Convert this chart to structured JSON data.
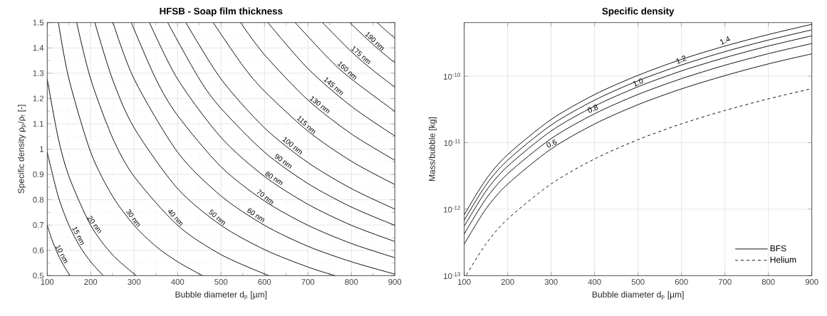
{
  "chart_data": [
    {
      "type": "line",
      "title": "HFSB - Soap film thickness",
      "xlabel": "Bubble diameter d$_{p}$ [µm]",
      "ylabel": "Specific density ρ$_{p}$/ρ$_{f}$ [-]",
      "xlim": [
        100,
        900
      ],
      "ylim": [
        0.5,
        1.5
      ],
      "xticks": [
        100,
        200,
        300,
        400,
        500,
        600,
        700,
        800,
        900
      ],
      "yticks": [
        0.5,
        0.6,
        0.7,
        0.8,
        0.9,
        1,
        1.1,
        1.2,
        1.3,
        1.4,
        1.5
      ],
      "grid": true,
      "series": [
        {
          "name": "10 nm",
          "color": "#000000",
          "x": [
            100,
            110,
            125,
            140,
            152.5
          ],
          "values": [
            0.7,
            0.646,
            0.583,
            0.534,
            0.5
          ]
        },
        {
          "name": "15 nm",
          "color": "#000000",
          "x": [
            100,
            125,
            150,
            175,
            200,
            228.8
          ],
          "values": [
            0.988,
            0.815,
            0.699,
            0.616,
            0.555,
            0.5
          ]
        },
        {
          "name": "20 nm",
          "color": "#000000",
          "x": [
            100,
            125,
            150,
            200,
            250,
            305
          ],
          "values": [
            1.277,
            1.046,
            0.892,
            0.699,
            0.583,
            0.5
          ]
        },
        {
          "name": "30 nm",
          "color": "#000000",
          "x": [
            125.7,
            150,
            200,
            250,
            300,
            350,
            400,
            457.5
          ],
          "values": [
            1.5,
            1.277,
            0.988,
            0.815,
            0.699,
            0.616,
            0.555,
            0.5
          ]
        },
        {
          "name": "40 nm",
          "color": "#000000",
          "x": [
            167.7,
            200,
            250,
            300,
            400,
            500,
            610
          ],
          "values": [
            1.5,
            1.277,
            1.046,
            0.892,
            0.699,
            0.583,
            0.5
          ]
        },
        {
          "name": "50 nm",
          "color": "#000000",
          "x": [
            209.6,
            250,
            300,
            400,
            500,
            600,
            700,
            762.5
          ],
          "values": [
            1.5,
            1.277,
            1.084,
            0.844,
            0.699,
            0.603,
            0.534,
            0.5
          ]
        },
        {
          "name": "60 nm",
          "color": "#000000",
          "x": [
            251.5,
            300,
            400,
            500,
            600,
            700,
            800,
            900
          ],
          "values": [
            1.5,
            1.277,
            0.988,
            0.815,
            0.699,
            0.616,
            0.555,
            0.506
          ]
        },
        {
          "name": "70 nm",
          "color": "#000000",
          "x": [
            293.4,
            350,
            400,
            500,
            600,
            700,
            800,
            900
          ],
          "values": [
            1.5,
            1.277,
            1.133,
            0.93,
            0.795,
            0.699,
            0.627,
            0.571
          ]
        },
        {
          "name": "80 nm",
          "color": "#000000",
          "x": [
            335.3,
            400,
            500,
            600,
            700,
            800,
            900
          ],
          "values": [
            1.5,
            1.277,
            1.046,
            0.892,
            0.782,
            0.699,
            0.635
          ]
        },
        {
          "name": "90 nm",
          "color": "#000000",
          "x": [
            377.2,
            450,
            500,
            600,
            700,
            800,
            900
          ],
          "values": [
            1.5,
            1.277,
            1.161,
            0.988,
            0.864,
            0.771,
            0.699
          ]
        },
        {
          "name": "100 nm",
          "color": "#000000",
          "x": [
            419.1,
            500,
            600,
            700,
            800,
            900
          ],
          "values": [
            1.5,
            1.277,
            1.084,
            0.947,
            0.844,
            0.763
          ]
        },
        {
          "name": "115 nm",
          "color": "#000000",
          "x": [
            482,
            550,
            600,
            700,
            800,
            900
          ],
          "values": [
            1.5,
            1.33,
            1.229,
            1.071,
            0.952,
            0.86
          ]
        },
        {
          "name": "130 nm",
          "color": "#000000",
          "x": [
            544.9,
            600,
            700,
            800,
            900
          ],
          "values": [
            1.5,
            1.373,
            1.194,
            1.06,
            0.956
          ]
        },
        {
          "name": "145 nm",
          "color": "#000000",
          "x": [
            607.8,
            700,
            800,
            900
          ],
          "values": [
            1.5,
            1.318,
            1.169,
            1.052
          ]
        },
        {
          "name": "160 nm",
          "color": "#000000",
          "x": [
            670.6,
            750,
            800,
            900
          ],
          "values": [
            1.5,
            1.354,
            1.277,
            1.149
          ]
        },
        {
          "name": "175 nm",
          "color": "#000000",
          "x": [
            733.5,
            800,
            850,
            900
          ],
          "values": [
            1.5,
            1.385,
            1.311,
            1.245
          ]
        },
        {
          "name": "190 nm",
          "color": "#000000",
          "x": [
            796.4,
            850,
            900
          ],
          "values": [
            1.5,
            1.413,
            1.341
          ]
        },
        {
          "color": "#000000",
          "x": [
            859.2,
            880,
            900
          ],
          "values": [
            1.5,
            1.468,
            1.438
          ]
        }
      ]
    },
    {
      "type": "line",
      "title": "Specific density",
      "xlabel": "Bubble diameter d$_{p}$ [µm]",
      "ylabel": "Mass/bubble [kg]",
      "log": "y",
      "xlim": [
        100,
        900
      ],
      "ylim": [
        1e-13,
        6.4e-10
      ],
      "xticks": [
        100,
        200,
        300,
        400,
        500,
        600,
        700,
        800,
        900
      ],
      "yticks": [
        {
          "value": 1e-13,
          "label": "10$^{-13}$"
        },
        {
          "value": 1e-12,
          "label": "10$^{-12}$"
        },
        {
          "value": 1e-11,
          "label": "10$^{-11}$"
        },
        {
          "value": 1e-10,
          "label": "10$^{-10}$"
        }
      ],
      "grid": true,
      "legend": "bottom right",
      "x": [
        100,
        150,
        200,
        300,
        400,
        500,
        600,
        700,
        800,
        900
      ],
      "series": [
        {
          "name": "BFS",
          "color": "#000000",
          "line_style": "solid",
          "values": [
            2.98e-13,
            1.01e-12,
            2.38e-12,
            8.05e-12,
            1.91e-11,
            3.73e-11,
            6.44e-11,
            1.02e-10,
            1.53e-10,
            2.17e-10
          ]
        },
        {
          "color": "#000000",
          "line_style": "solid",
          "values": [
            4.25e-13,
            1.43e-12,
            3.4e-12,
            1.15e-11,
            2.72e-11,
            5.31e-11,
            9.18e-11,
            1.46e-10,
            2.18e-10,
            3.1e-10
          ]
        },
        {
          "color": "#000000",
          "line_style": "solid",
          "values": [
            5.54e-13,
            1.87e-12,
            4.43e-12,
            1.5e-11,
            3.55e-11,
            6.93e-11,
            1.2e-10,
            1.9e-10,
            2.84e-10,
            4.04e-10
          ]
        },
        {
          "color": "#000000",
          "line_style": "solid",
          "values": [
            6.82e-13,
            2.3e-12,
            5.46e-12,
            1.84e-11,
            4.36e-11,
            8.53e-11,
            1.47e-10,
            2.34e-10,
            3.49e-10,
            4.97e-10
          ]
        },
        {
          "color": "#000000",
          "line_style": "solid",
          "values": [
            8.27e-13,
            2.79e-12,
            6.62e-12,
            2.23e-11,
            5.29e-11,
            1.03e-10,
            1.79e-10,
            2.84e-10,
            4.23e-10,
            6.03e-10
          ]
        },
        {
          "name": "Helium",
          "color": "#000000",
          "line_style": "dashed",
          "x": [
            105,
            150,
            200,
            300,
            400,
            500,
            600,
            700,
            800,
            900
          ],
          "values": [
            1.03e-13,
            3e-13,
            7.12e-13,
            2.4e-12,
            5.7e-12,
            1.11e-11,
            1.92e-11,
            3.05e-11,
            4.56e-11,
            6.49e-11
          ]
        }
      ],
      "annotations": [
        {
          "text": "0.6",
          "x": 305,
          "y": 8.5e-12
        },
        {
          "text": "0.8",
          "x": 400,
          "y": 2.83e-11
        },
        {
          "text": "1.0",
          "x": 504,
          "y": 7.06e-11
        },
        {
          "text": "1.2",
          "x": 603,
          "y": 1.55e-10
        },
        {
          "text": "1.4",
          "x": 704,
          "y": 3.02e-10
        }
      ]
    }
  ]
}
